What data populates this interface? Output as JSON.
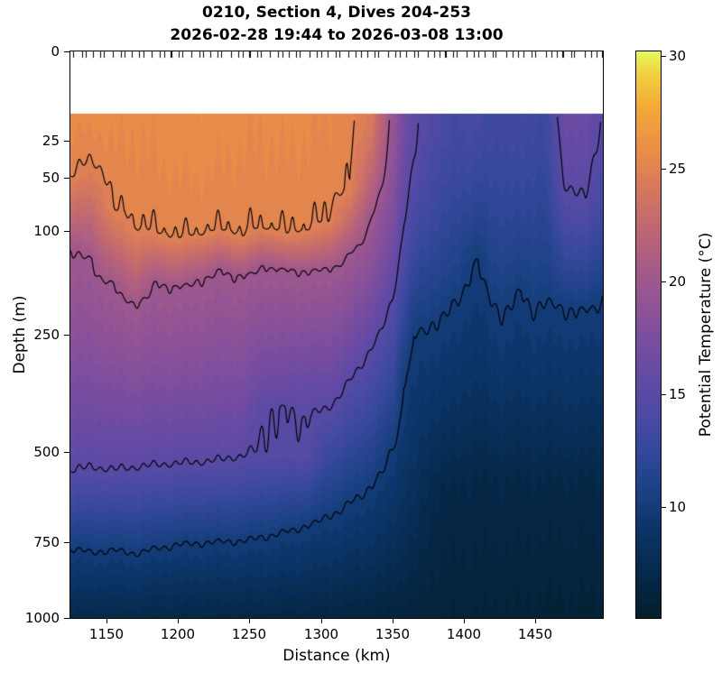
{
  "chart_data": {
    "type": "heatmap",
    "title": "0210, Section 4, Dives 204-253",
    "subtitle": "2026-02-28 19:44 to 2026-03-08 13:00",
    "xlabel": "Distance (km)",
    "ylabel": "Depth (m)",
    "x_range_km": [
      1125,
      1497
    ],
    "x_ticks": [
      1150,
      1200,
      1250,
      1300,
      1350,
      1400,
      1450
    ],
    "y_scale": "sqrt",
    "y_range_m": [
      0,
      1000
    ],
    "y_ticks": [
      0,
      25,
      50,
      100,
      250,
      500,
      750,
      1000
    ],
    "data_top_depth_m": 12,
    "top_rug_tick_count": 95,
    "contour_levels_c": [
      10,
      15,
      20,
      25
    ],
    "band_step_c": 0.5,
    "colorbar": {
      "label": "Potential Temperature (°C)",
      "min": 5.08,
      "max": 30.2,
      "ticks": [
        10,
        15,
        20,
        25,
        30
      ],
      "colormap": "thermal",
      "stops": [
        [
          0.0,
          "#031e2c"
        ],
        [
          0.08,
          "#06294a"
        ],
        [
          0.16,
          "#0c3569"
        ],
        [
          0.22,
          "#1a4183"
        ],
        [
          0.3,
          "#35489c"
        ],
        [
          0.36,
          "#4c4aa3"
        ],
        [
          0.42,
          "#614aa5"
        ],
        [
          0.5,
          "#7d4e9e"
        ],
        [
          0.58,
          "#9a5690"
        ],
        [
          0.66,
          "#b5617c"
        ],
        [
          0.74,
          "#d07362"
        ],
        [
          0.82,
          "#e88b49"
        ],
        [
          0.9,
          "#f4a837"
        ],
        [
          0.96,
          "#f2d03f"
        ],
        [
          1.0,
          "#e5f95e"
        ]
      ]
    },
    "profiles": [
      {
        "x": 1125,
        "td": [
          [
            10,
            25.7
          ],
          [
            48,
            25
          ],
          [
            118,
            20
          ],
          [
            548,
            15
          ],
          [
            770,
            10
          ],
          [
            1000,
            7.2
          ]
        ]
      },
      {
        "x": 1140,
        "td": [
          [
            10,
            25.8
          ],
          [
            38,
            25
          ],
          [
            135,
            20
          ],
          [
            540,
            15
          ],
          [
            782,
            10
          ],
          [
            1000,
            7.2
          ]
        ]
      },
      {
        "x": 1155,
        "td": [
          [
            10,
            25.7
          ],
          [
            78,
            25
          ],
          [
            168,
            20
          ],
          [
            546,
            15
          ],
          [
            775,
            10
          ],
          [
            1000,
            7.1
          ]
        ]
      },
      {
        "x": 1170,
        "td": [
          [
            10,
            25.6
          ],
          [
            96,
            25
          ],
          [
            198,
            20
          ],
          [
            540,
            15
          ],
          [
            786,
            10
          ],
          [
            1000,
            7.1
          ]
        ]
      },
      {
        "x": 1185,
        "td": [
          [
            10,
            25.7
          ],
          [
            102,
            25
          ],
          [
            166,
            20
          ],
          [
            534,
            15
          ],
          [
            770,
            10
          ],
          [
            1000,
            7.0
          ]
        ]
      },
      {
        "x": 1200,
        "td": [
          [
            10,
            25.85
          ],
          [
            108,
            25
          ],
          [
            173,
            20
          ],
          [
            530,
            15
          ],
          [
            758,
            10
          ],
          [
            1000,
            7.0
          ]
        ]
      },
      {
        "x": 1215,
        "td": [
          [
            10,
            25.9
          ],
          [
            104,
            25
          ],
          [
            161,
            20
          ],
          [
            527,
            15
          ],
          [
            754,
            10
          ],
          [
            1000,
            6.9
          ]
        ]
      },
      {
        "x": 1230,
        "td": [
          [
            10,
            25.75
          ],
          [
            99,
            25
          ],
          [
            149,
            20
          ],
          [
            521,
            15
          ],
          [
            749,
            10
          ],
          [
            1000,
            6.9
          ]
        ]
      },
      {
        "x": 1245,
        "td": [
          [
            10,
            25.65
          ],
          [
            106,
            25
          ],
          [
            157,
            20
          ],
          [
            511,
            15
          ],
          [
            747,
            10
          ],
          [
            1000,
            6.8
          ]
        ]
      },
      {
        "x": 1260,
        "td": [
          [
            10,
            25.6
          ],
          [
            97,
            25
          ],
          [
            141,
            20
          ],
          [
            360,
            16
          ],
          [
            400,
            15.05
          ],
          [
            500,
            14.85
          ],
          [
            734,
            10
          ],
          [
            1000,
            6.8
          ]
        ]
      },
      {
        "x": 1275,
        "td": [
          [
            10,
            25.7
          ],
          [
            103,
            25
          ],
          [
            149,
            20
          ],
          [
            356,
            16
          ],
          [
            396,
            15.02
          ],
          [
            506,
            14.8
          ],
          [
            720,
            10
          ],
          [
            1000,
            6.7
          ]
        ]
      },
      {
        "x": 1290,
        "td": [
          [
            10,
            25.6
          ],
          [
            99,
            25
          ],
          [
            151,
            20
          ],
          [
            350,
            15.8
          ],
          [
            420,
            15.0
          ],
          [
            510,
            14.7
          ],
          [
            700,
            10
          ],
          [
            1000,
            6.7
          ]
        ]
      },
      {
        "x": 1305,
        "td": [
          [
            10,
            25.5
          ],
          [
            90,
            25
          ],
          [
            147,
            20
          ],
          [
            398,
            15
          ],
          [
            672,
            10
          ],
          [
            1000,
            6.6
          ]
        ]
      },
      {
        "x": 1320,
        "td": [
          [
            10,
            25.3
          ],
          [
            60,
            25
          ],
          [
            128,
            20
          ],
          [
            338,
            15
          ],
          [
            636,
            10
          ],
          [
            1000,
            6.5
          ]
        ]
      },
      {
        "x": 1335,
        "td": [
          [
            10,
            24.6
          ],
          [
            84,
            20
          ],
          [
            272,
            15
          ],
          [
            584,
            10
          ],
          [
            1000,
            6.4
          ]
        ]
      },
      {
        "x": 1350,
        "td": [
          [
            10,
            19.6
          ],
          [
            192,
            15
          ],
          [
            492,
            10
          ],
          [
            1000,
            6.3
          ]
        ]
      },
      {
        "x": 1358,
        "td": [
          [
            10,
            16.9
          ],
          [
            88,
            15
          ],
          [
            328,
            10
          ],
          [
            1000,
            6.2
          ]
        ]
      },
      {
        "x": 1365,
        "td": [
          [
            10,
            15.4
          ],
          [
            36,
            15
          ],
          [
            252,
            10
          ],
          [
            1000,
            6.2
          ]
        ]
      },
      {
        "x": 1380,
        "td": [
          [
            10,
            14.2
          ],
          [
            224,
            10
          ],
          [
            600,
            7
          ],
          [
            1000,
            6.1
          ]
        ]
      },
      {
        "x": 1395,
        "td": [
          [
            10,
            13.6
          ],
          [
            197,
            10
          ],
          [
            580,
            7
          ],
          [
            1000,
            6.0
          ]
        ]
      },
      {
        "x": 1403,
        "td": [
          [
            10,
            13.9
          ],
          [
            149,
            10
          ],
          [
            560,
            7
          ],
          [
            1000,
            6.0
          ]
        ]
      },
      {
        "x": 1410,
        "td": [
          [
            10,
            13.8
          ],
          [
            131,
            10
          ],
          [
            552,
            7
          ],
          [
            1000,
            6.0
          ]
        ]
      },
      {
        "x": 1418,
        "td": [
          [
            10,
            13.4
          ],
          [
            189,
            10
          ],
          [
            560,
            7
          ],
          [
            1000,
            5.9
          ]
        ]
      },
      {
        "x": 1426,
        "td": [
          [
            10,
            13.2
          ],
          [
            213,
            10
          ],
          [
            572,
            7
          ],
          [
            1000,
            5.9
          ]
        ]
      },
      {
        "x": 1440,
        "td": [
          [
            10,
            13.6
          ],
          [
            181,
            10
          ],
          [
            556,
            7
          ],
          [
            1000,
            5.9
          ]
        ]
      },
      {
        "x": 1448,
        "td": [
          [
            10,
            13.1
          ],
          [
            206,
            10
          ],
          [
            566,
            7
          ],
          [
            1000,
            5.8
          ]
        ]
      },
      {
        "x": 1456,
        "td": [
          [
            10,
            13.0
          ],
          [
            194,
            10
          ],
          [
            560,
            7
          ],
          [
            1000,
            5.8
          ]
        ]
      },
      {
        "x": 1470,
        "td": [
          [
            10,
            16.2
          ],
          [
            55,
            15
          ],
          [
            205,
            10
          ],
          [
            560,
            7
          ],
          [
            1000,
            5.8
          ]
        ]
      },
      {
        "x": 1485,
        "td": [
          [
            10,
            16.4
          ],
          [
            68,
            15
          ],
          [
            210,
            10
          ],
          [
            566,
            7
          ],
          [
            1000,
            5.8
          ]
        ]
      },
      {
        "x": 1497,
        "td": [
          [
            10,
            14.9
          ],
          [
            188,
            10
          ],
          [
            556,
            7
          ],
          [
            1000,
            5.8
          ]
        ]
      }
    ]
  }
}
